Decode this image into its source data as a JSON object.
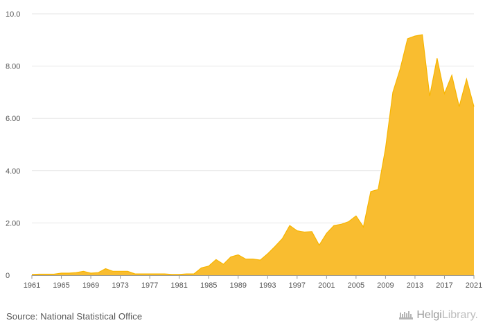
{
  "chart_data": {
    "type": "area",
    "title": "",
    "xlabel": "",
    "ylabel": "",
    "ylim": [
      0,
      10
    ],
    "xlim": [
      1961,
      2021
    ],
    "yticks": [
      "0",
      "2.00",
      "4.00",
      "6.00",
      "8.00",
      "10.0"
    ],
    "ytick_values": [
      0,
      2,
      4,
      6,
      8,
      10
    ],
    "xticks": [
      "1961",
      "1965",
      "1969",
      "1973",
      "1977",
      "1981",
      "1985",
      "1989",
      "1993",
      "1997",
      "2001",
      "2005",
      "2009",
      "2013",
      "2017",
      "2021"
    ],
    "x": [
      1961,
      1962,
      1963,
      1964,
      1965,
      1966,
      1967,
      1968,
      1969,
      1970,
      1971,
      1972,
      1973,
      1974,
      1975,
      1976,
      1977,
      1978,
      1979,
      1980,
      1981,
      1982,
      1983,
      1984,
      1985,
      1986,
      1987,
      1988,
      1989,
      1990,
      1991,
      1992,
      1993,
      1994,
      1995,
      1996,
      1997,
      1998,
      1999,
      2000,
      2001,
      2002,
      2003,
      2004,
      2005,
      2006,
      2007,
      2008,
      2009,
      2010,
      2011,
      2012,
      2013,
      2014,
      2015,
      2016,
      2017,
      2018,
      2019,
      2020,
      2021
    ],
    "values": [
      0.03,
      0.04,
      0.04,
      0.04,
      0.08,
      0.08,
      0.1,
      0.15,
      0.08,
      0.1,
      0.25,
      0.15,
      0.15,
      0.15,
      0.05,
      0.05,
      0.05,
      0.05,
      0.05,
      0.03,
      0.03,
      0.05,
      0.05,
      0.28,
      0.35,
      0.6,
      0.42,
      0.7,
      0.78,
      0.62,
      0.62,
      0.58,
      0.82,
      1.1,
      1.4,
      1.9,
      1.7,
      1.65,
      1.67,
      1.15,
      1.6,
      1.9,
      1.95,
      2.05,
      2.27,
      1.85,
      3.2,
      3.28,
      4.85,
      7.0,
      7.9,
      9.05,
      9.15,
      9.2,
      6.85,
      8.3,
      6.95,
      7.65,
      6.45,
      7.5,
      6.45
    ],
    "series_color": "#f7b500",
    "fill_color": "#f9bd30",
    "grid": true
  },
  "footer": {
    "source": "Source: National Statistical Office",
    "brand_main": "Helgi",
    "brand_light": "Library."
  }
}
